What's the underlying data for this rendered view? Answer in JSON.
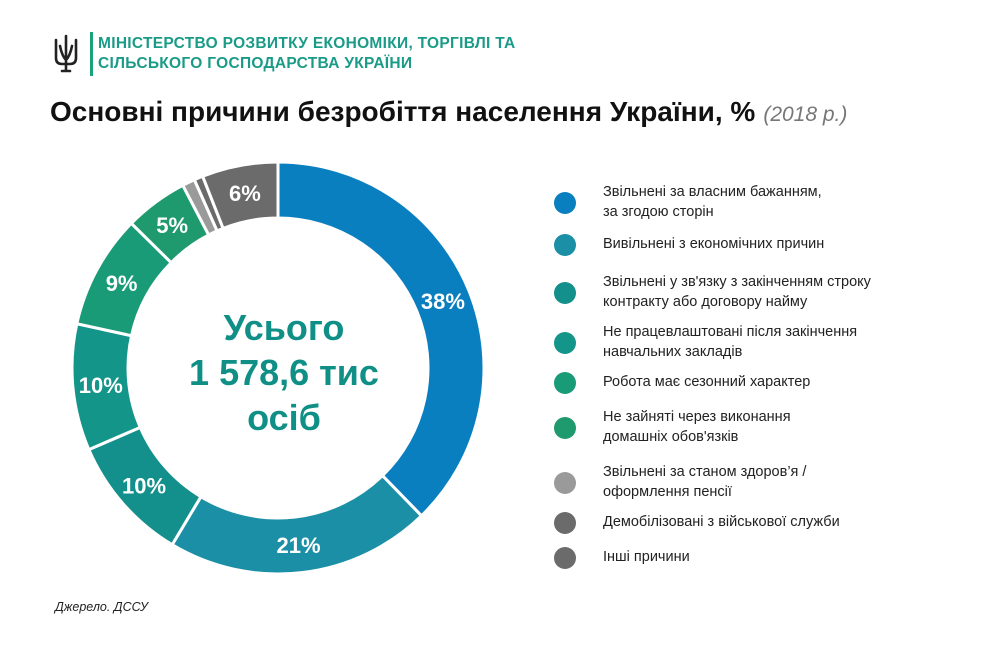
{
  "header": {
    "ministry_line1": "МІНІСТЕРСТВО РОЗВИТКУ ЕКОНОМІКИ, ТОРГІВЛІ ТА",
    "ministry_line2": "СІЛЬСЬКОГО ГОСПОДАРСТВА УКРАЇНИ",
    "emblem_icon": "trident-icon",
    "accent_color": "#1a9b87"
  },
  "title": "Основні причини безробіття населення України, %",
  "title_period": "(2018 р.)",
  "center": {
    "line1": "Усього",
    "line2": "1 578,6 тис",
    "line3": "осіб"
  },
  "source": "Джерело. ДССУ",
  "chart_data": {
    "type": "donut",
    "unit": "%",
    "total_label": "Усього 1 578,6 тис осіб",
    "series": [
      {
        "label": "Звільнені за власним бажанням, за згодою сторін",
        "value": 38,
        "data_label": "38%",
        "color": "#0a7fc0"
      },
      {
        "label": "Вивільнені з економічних причин",
        "value": 21,
        "data_label": "21%",
        "color": "#1a8fa6"
      },
      {
        "label": "Звільнені у зв'язку з закінченням строку контракту або договору найму",
        "value": 10,
        "data_label": "10%",
        "color": "#138f8c"
      },
      {
        "label": "Не працевлаштовані після закінчення навчальних закладів",
        "value": 10,
        "data_label": "10%",
        "color": "#14958a"
      },
      {
        "label": "Робота має сезонний характер",
        "value": 9,
        "data_label": "9%",
        "color": "#1a9b78"
      },
      {
        "label": "Не зайняті через виконання домашніх обов'язків",
        "value": 5,
        "data_label": "5%",
        "color": "#1e9a6e"
      },
      {
        "label": "Звільнені за станом здоров’я / оформлення пенсії",
        "value": 1,
        "data_label": "",
        "color": "#9a9a9a"
      },
      {
        "label": "Демобілізовані з військової служби",
        "value": 0.7,
        "data_label": "",
        "color": "#6b6b6b"
      },
      {
        "label": "Інші причини",
        "value": 6,
        "data_label": "6%",
        "color": "#6b6b6b"
      }
    ]
  },
  "legend": {
    "items": [
      {
        "line1": "Звільнені за власним бажанням,",
        "line2": "за згодою сторін"
      },
      {
        "line1": "Вивільнені з економічних причин",
        "line2": ""
      },
      {
        "line1": "Звільнені у зв'язку з закінченням строку",
        "line2": "контракту або договору найму"
      },
      {
        "line1": "Не працевлаштовані після закінчення",
        "line2": "навчальних закладів"
      },
      {
        "line1": "Робота має сезонний характер",
        "line2": ""
      },
      {
        "line1": "Не зайняті через виконання",
        "line2": "домашніх обов'язків"
      },
      {
        "line1": "Звільнені за станом здоров’я /",
        "line2": "оформлення пенсії"
      },
      {
        "line1": "Демобілізовані з військової служби",
        "line2": ""
      },
      {
        "line1": "Інші причини",
        "line2": ""
      }
    ]
  }
}
